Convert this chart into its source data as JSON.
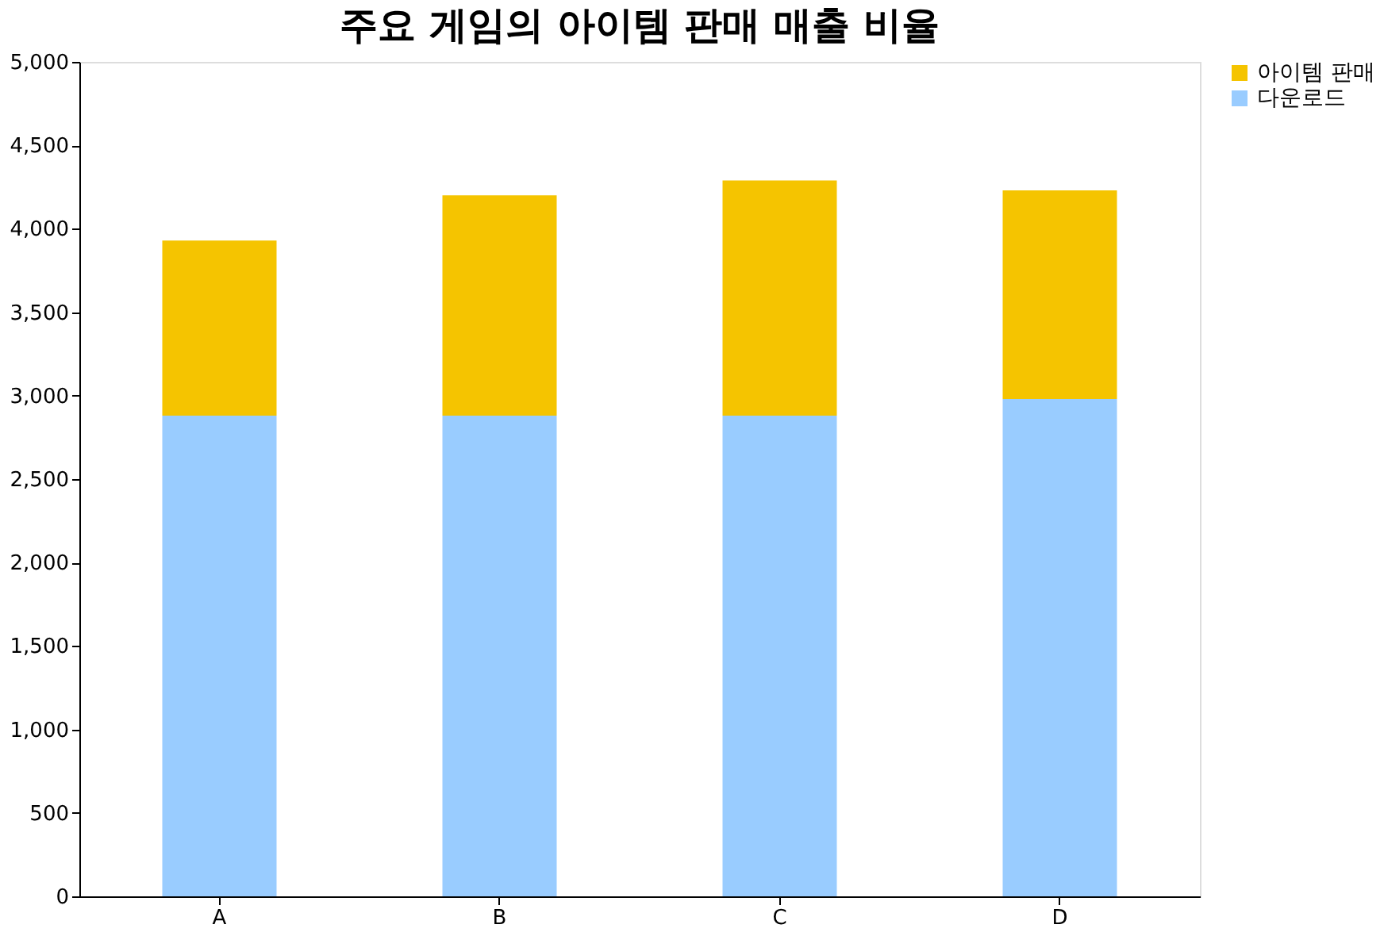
{
  "chart_data": {
    "type": "bar",
    "stacked": true,
    "title": "주요 게임의 아이템 판매 매출 비율",
    "categories": [
      "A",
      "B",
      "C",
      "D"
    ],
    "series": [
      {
        "name": "다운로드",
        "color": "#99ccff",
        "values": [
          2880,
          2880,
          2880,
          2980
        ]
      },
      {
        "name": "아이템 판매",
        "color": "#f5c400",
        "values": [
          1050,
          1320,
          1410,
          1250
        ]
      }
    ],
    "ylim": [
      0,
      5000
    ],
    "yticks": [
      0,
      500,
      {
        "value": 1000,
        "label": "1,000"
      },
      {
        "value": 1500,
        "label": "1,500"
      },
      {
        "value": 2000,
        "label": "2,000"
      },
      {
        "value": 2500,
        "label": "2,500"
      },
      {
        "value": 3000,
        "label": "3,000"
      },
      {
        "value": 3500,
        "label": "3,500"
      },
      {
        "value": 4000,
        "label": "4,000"
      },
      {
        "value": 4500,
        "label": "4,500"
      },
      {
        "value": 5000,
        "label": "5,000"
      }
    ],
    "grid": false,
    "legend": "right"
  }
}
